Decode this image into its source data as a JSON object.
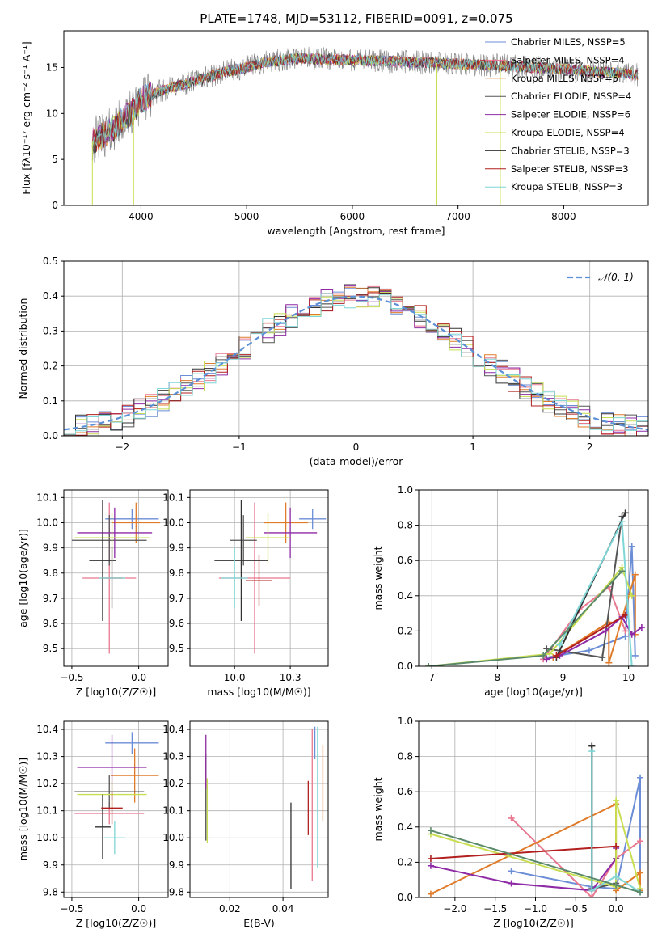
{
  "figure": {
    "title": "PLATE=1748, MJD=53112, FIBERID=0091, z=0.075"
  },
  "colors": {
    "chabrier_miles": "#6c8ed6",
    "salpeter_miles": "#e8778f",
    "kroupa_miles": "#e07b2a",
    "chabrier_elodie": "#555555",
    "salpeter_elodie": "#8e2aa5",
    "kroupa_elodie": "#c8de50",
    "chabrier_stelib": "#333333",
    "salpeter_stelib": "#b21f1f",
    "kroupa_stelib": "#7fd6d6",
    "normal_curve": "#5b8fd6",
    "data_gray": "#808080"
  },
  "chart_data": [
    {
      "id": "spectrum",
      "type": "line",
      "title": "PLATE=1748, MJD=53112, FIBERID=0091, z=0.075",
      "xlabel": "wavelength [Angstrom, rest frame]",
      "ylabel": "Flux [fλ10⁻¹⁷ erg cm⁻² s⁻¹ A⁻¹]",
      "xlim": [
        3270,
        8800
      ],
      "ylim": [
        0,
        19
      ],
      "xticks": [
        4000,
        5000,
        6000,
        7000,
        8000
      ],
      "yticks": [
        0,
        5,
        10,
        15
      ],
      "grid": false,
      "legend_position": "top-right",
      "legend": [
        {
          "name": "Chabrier MILES, NSSP=5",
          "color": "#6c8ed6"
        },
        {
          "name": "Salpeter MILES, NSSP=4",
          "color": "#e8778f"
        },
        {
          "name": "Kroupa MILES, NSSP=5",
          "color": "#e07b2a"
        },
        {
          "name": "Chabrier ELODIE, NSSP=4",
          "color": "#555555"
        },
        {
          "name": "Salpeter ELODIE, NSSP=6",
          "color": "#8e2aa5"
        },
        {
          "name": "Kroupa ELODIE, NSSP=4",
          "color": "#c8de50"
        },
        {
          "name": "Chabrier STELIB, NSSP=3",
          "color": "#333333"
        },
        {
          "name": "Salpeter STELIB, NSSP=3",
          "color": "#b21f1f"
        },
        {
          "name": "Kroupa STELIB, NSSP=3",
          "color": "#7fd6d6"
        }
      ],
      "continuum": {
        "x": [
          3540,
          3700,
          3900,
          4000,
          4200,
          4500,
          4800,
          5000,
          5200,
          5500,
          6000,
          6500,
          7000,
          7400,
          7700,
          8000,
          8500,
          8700
        ],
        "y": [
          7.0,
          8.0,
          10.0,
          11.5,
          12.5,
          13.5,
          14.5,
          15.0,
          15.6,
          16.0,
          15.8,
          15.6,
          15.4,
          15.2,
          15.0,
          14.8,
          14.4,
          14.2
        ]
      },
      "spikes": [
        {
          "x": 3540,
          "y": 0
        },
        {
          "x": 3930,
          "y": 0
        },
        {
          "x": 6800,
          "y": 0
        },
        {
          "x": 7400,
          "y": 0
        }
      ]
    },
    {
      "id": "residuals",
      "type": "bar",
      "xlabel": "(data-model)/error",
      "ylabel": "Normed distribution",
      "xlim": [
        -2.5,
        2.5
      ],
      "ylim": [
        0,
        0.5
      ],
      "xticks": [
        -2,
        -1,
        0,
        1,
        2
      ],
      "yticks": [
        0.0,
        0.1,
        0.2,
        0.3,
        0.4,
        0.5
      ],
      "grid": true,
      "legend_position": "top-right",
      "legend": [
        {
          "name": "𝒩(0, 1)",
          "color": "#5b8fd6"
        }
      ],
      "bin_width": 0.1,
      "bin_start": -2.5,
      "reference_curve": "normal(0,1)"
    },
    {
      "id": "age_vs_Z",
      "type": "scatter",
      "xlabel": "Z [log10(Z/Z☉)]",
      "ylabel": "age  [log10(age/yr)]",
      "xlim": [
        -0.56,
        0.22
      ],
      "ylim": [
        9.43,
        10.13
      ],
      "xticks": [
        -0.5,
        0.0
      ],
      "yticks": [
        9.5,
        9.6,
        9.7,
        9.8,
        9.9,
        10.0,
        10.1
      ],
      "grid": true,
      "points": [
        {
          "x": -0.05,
          "y": 10.015,
          "xerr": 0.2,
          "yerr": 0.04,
          "color": "#6c8ed6"
        },
        {
          "x": -0.22,
          "y": 9.78,
          "xerr": 0.2,
          "yerr": 0.3,
          "color": "#e8778f"
        },
        {
          "x": -0.02,
          "y": 10.0,
          "xerr": 0.18,
          "yerr": 0.08,
          "color": "#e07b2a"
        },
        {
          "x": -0.22,
          "y": 9.93,
          "xerr": 0.28,
          "yerr": 0.1,
          "color": "#555555"
        },
        {
          "x": -0.18,
          "y": 9.96,
          "xerr": 0.28,
          "yerr": 0.1,
          "color": "#8e2aa5"
        },
        {
          "x": -0.2,
          "y": 9.94,
          "xerr": 0.28,
          "yerr": 0.1,
          "color": "#c8de50"
        },
        {
          "x": -0.27,
          "y": 9.85,
          "xerr": 0.1,
          "yerr": 0.24,
          "color": "#333333"
        },
        {
          "x": -0.2,
          "y": 9.78,
          "xerr": 0.08,
          "yerr": 0.12,
          "color": "#b21f1f"
        },
        {
          "x": -0.2,
          "y": 9.78,
          "xerr": 0.1,
          "yerr": 0.12,
          "color": "#7fd6d6"
        }
      ]
    },
    {
      "id": "age_vs_mass",
      "type": "scatter",
      "xlabel": "mass [log10(M/M☉)]",
      "ylabel": "",
      "xlim": [
        9.8,
        10.42
      ],
      "ylim": [
        9.43,
        10.13
      ],
      "xticks": [
        10.0,
        10.25
      ],
      "yticks": [
        9.5,
        9.6,
        9.7,
        9.8,
        9.9,
        10.0,
        10.1
      ],
      "grid": true,
      "points": [
        {
          "x": 10.35,
          "y": 10.015,
          "xerr": 0.06,
          "yerr": 0.04,
          "color": "#6c8ed6"
        },
        {
          "x": 10.09,
          "y": 9.78,
          "xerr": 0.16,
          "yerr": 0.3,
          "color": "#e8778f"
        },
        {
          "x": 10.23,
          "y": 10.0,
          "xerr": 0.1,
          "yerr": 0.08,
          "color": "#e07b2a"
        },
        {
          "x": 10.04,
          "y": 9.93,
          "xerr": 0.06,
          "yerr": 0.1,
          "color": "#555555"
        },
        {
          "x": 10.25,
          "y": 9.96,
          "xerr": 0.12,
          "yerr": 0.1,
          "color": "#8e2aa5"
        },
        {
          "x": 10.15,
          "y": 9.94,
          "xerr": 0.1,
          "yerr": 0.1,
          "color": "#c8de50"
        },
        {
          "x": 10.03,
          "y": 9.85,
          "xerr": 0.12,
          "yerr": 0.24,
          "color": "#333333"
        },
        {
          "x": 10.11,
          "y": 9.77,
          "xerr": 0.06,
          "yerr": 0.1,
          "color": "#b21f1f"
        },
        {
          "x": 10.0,
          "y": 9.78,
          "xerr": 0.06,
          "yerr": 0.12,
          "color": "#7fd6d6"
        }
      ]
    },
    {
      "id": "weight_vs_age",
      "type": "line",
      "xlabel": "age  [log10(age/yr)]",
      "ylabel": "mass weight",
      "xlim": [
        6.8,
        10.3
      ],
      "ylim": [
        0.0,
        1.0
      ],
      "xticks": [
        7,
        8,
        9,
        10
      ],
      "yticks": [
        0.0,
        0.2,
        0.4,
        0.6,
        0.8,
        1.0
      ],
      "grid": true,
      "series": [
        {
          "color": "#6c8ed6",
          "x": [
            8.75,
            9.4,
            9.95,
            10.05,
            10.1
          ],
          "y": [
            0.05,
            0.09,
            0.17,
            0.68,
            0.06
          ]
        },
        {
          "color": "#e8778f",
          "x": [
            8.7,
            9.25,
            9.7,
            9.95
          ],
          "y": [
            0.04,
            0.32,
            0.45,
            0.2
          ]
        },
        {
          "color": "#e07b2a",
          "x": [
            8.85,
            9.7,
            9.7,
            10.1,
            10.1
          ],
          "y": [
            0.05,
            0.25,
            0.02,
            0.52,
            0.18
          ]
        },
        {
          "color": "#555555",
          "x": [
            8.75,
            9.6,
            9.9
          ],
          "y": [
            0.1,
            0.05,
            0.85
          ]
        },
        {
          "color": "#8e2aa5",
          "x": [
            8.75,
            8.95,
            9.65,
            9.9,
            10.05,
            10.2
          ],
          "y": [
            0.04,
            0.06,
            0.2,
            0.28,
            0.18,
            0.22
          ]
        },
        {
          "color": "#c8de50",
          "x": [
            6.95,
            8.8,
            9.9,
            10.05
          ],
          "y": [
            0.0,
            0.07,
            0.56,
            0.4
          ]
        },
        {
          "color": "#333333",
          "x": [
            8.9,
            9.95
          ],
          "y": [
            0.05,
            0.87
          ]
        },
        {
          "color": "#b21f1f",
          "x": [
            8.9,
            9.95
          ],
          "y": [
            0.06,
            0.29
          ]
        },
        {
          "color": "#7fd6d6",
          "x": [
            8.95,
            9.9,
            10.05
          ],
          "y": [
            0.12,
            0.82,
            0.0
          ]
        },
        {
          "color": "#5a8a6a",
          "x": [
            6.95,
            8.7,
            9.9
          ],
          "y": [
            0.0,
            0.06,
            0.54
          ]
        }
      ]
    },
    {
      "id": "mass_vs_Z",
      "type": "scatter",
      "xlabel": "Z [log10(Z/Z☉)]",
      "ylabel": "mass [log10(M/M☉)]",
      "xlim": [
        -0.56,
        0.22
      ],
      "ylim": [
        9.78,
        10.43
      ],
      "xticks": [
        -0.5,
        0.0
      ],
      "yticks": [
        9.8,
        9.9,
        10.0,
        10.1,
        10.2,
        10.3,
        10.4
      ],
      "grid": true,
      "points": [
        {
          "x": -0.05,
          "y": 10.35,
          "xerr": 0.2,
          "yerr": 0.04,
          "color": "#6c8ed6"
        },
        {
          "x": -0.22,
          "y": 10.09,
          "xerr": 0.26,
          "yerr": 0.04,
          "color": "#e8778f"
        },
        {
          "x": -0.03,
          "y": 10.23,
          "xerr": 0.18,
          "yerr": 0.1,
          "color": "#e07b2a"
        },
        {
          "x": -0.22,
          "y": 10.17,
          "xerr": 0.26,
          "yerr": 0.06,
          "color": "#555555"
        },
        {
          "x": -0.2,
          "y": 10.26,
          "xerr": 0.26,
          "yerr": 0.12,
          "color": "#8e2aa5"
        },
        {
          "x": -0.2,
          "y": 10.16,
          "xerr": 0.26,
          "yerr": 0.05,
          "color": "#c8de50"
        },
        {
          "x": -0.27,
          "y": 10.04,
          "xerr": 0.06,
          "yerr": 0.12,
          "color": "#333333"
        },
        {
          "x": -0.2,
          "y": 10.11,
          "xerr": 0.08,
          "yerr": 0.06,
          "color": "#b21f1f"
        },
        {
          "x": -0.18,
          "y": 10.0,
          "xerr": 0.08,
          "yerr": 0.06,
          "color": "#7fd6d6"
        }
      ]
    },
    {
      "id": "mass_vs_ebv",
      "type": "scatter",
      "xlabel": "E(B-V)",
      "ylabel": "",
      "xlim": [
        0.005,
        0.057
      ],
      "ylim": [
        9.78,
        10.43
      ],
      "xticks": [
        0.02,
        0.04
      ],
      "yticks": [
        9.8,
        9.9,
        10.0,
        10.1,
        10.2,
        10.3,
        10.4
      ],
      "grid": true,
      "points": [
        {
          "x": 0.052,
          "y": 10.35,
          "yerr": 0.06,
          "color": "#6c8ed6"
        },
        {
          "x": 0.051,
          "y": 10.12,
          "yerr": 0.28,
          "color": "#e8778f"
        },
        {
          "x": 0.055,
          "y": 10.2,
          "yerr": 0.14,
          "color": "#e07b2a"
        },
        {
          "x": 0.011,
          "y": 10.15,
          "yerr": 0.16,
          "color": "#555555"
        },
        {
          "x": 0.011,
          "y": 10.28,
          "yerr": 0.1,
          "color": "#8e2aa5"
        },
        {
          "x": 0.0115,
          "y": 10.1,
          "yerr": 0.12,
          "color": "#c8de50"
        },
        {
          "x": 0.043,
          "y": 9.97,
          "yerr": 0.16,
          "color": "#333333"
        },
        {
          "x": 0.0495,
          "y": 10.11,
          "yerr": 0.1,
          "color": "#b21f1f"
        },
        {
          "x": 0.053,
          "y": 10.15,
          "yerr": 0.26,
          "color": "#7fd6d6"
        }
      ]
    },
    {
      "id": "weight_vs_Z",
      "type": "line",
      "xlabel": "Z [log10(Z/Z☉)]",
      "ylabel": "mass weight",
      "xlim": [
        -2.45,
        0.4
      ],
      "ylim": [
        0.0,
        1.0
      ],
      "xticks": [
        -2.0,
        -1.5,
        -1.0,
        -0.5,
        0.0
      ],
      "yticks": [
        0.0,
        0.2,
        0.4,
        0.6,
        0.8,
        1.0
      ],
      "grid": true,
      "series": [
        {
          "color": "#6c8ed6",
          "x": [
            -1.3,
            -0.3,
            0.0,
            0.3,
            0.3
          ],
          "y": [
            0.15,
            0.06,
            0.05,
            0.68,
            0.04
          ]
        },
        {
          "color": "#e8778f",
          "x": [
            -1.3,
            -0.3,
            0.0,
            0.3
          ],
          "y": [
            0.45,
            0.0,
            0.22,
            0.32
          ]
        },
        {
          "color": "#e07b2a",
          "x": [
            -2.3,
            0.0,
            0.0,
            0.3,
            0.3
          ],
          "y": [
            0.02,
            0.53,
            0.04,
            0.14,
            0.04
          ]
        },
        {
          "color": "#555555",
          "x": [
            -0.3,
            -0.3,
            0.0
          ],
          "y": [
            0.86,
            0.05,
            0.08
          ]
        },
        {
          "color": "#8e2aa5",
          "x": [
            -2.3,
            -1.3,
            -0.3,
            0.0,
            0.0
          ],
          "y": [
            0.18,
            0.08,
            0.04,
            0.22,
            0.28
          ]
        },
        {
          "color": "#c8de50",
          "x": [
            -2.3,
            0.0,
            0.0,
            0.3
          ],
          "y": [
            0.36,
            0.06,
            0.55,
            0.05
          ]
        },
        {
          "color": "#333333",
          "x": [
            -0.3,
            -0.3
          ],
          "y": [
            0.86,
            0.04
          ]
        },
        {
          "color": "#b21f1f",
          "x": [
            -2.3,
            0.0
          ],
          "y": [
            0.22,
            0.29
          ]
        },
        {
          "color": "#7fd6d6",
          "x": [
            -0.3,
            -0.3,
            0.0,
            0.3
          ],
          "y": [
            0.83,
            0.04,
            0.12,
            0.03
          ]
        },
        {
          "color": "#5a8a6a",
          "x": [
            -2.3,
            0.0,
            0.3
          ],
          "y": [
            0.38,
            0.07,
            0.03
          ]
        }
      ]
    }
  ]
}
